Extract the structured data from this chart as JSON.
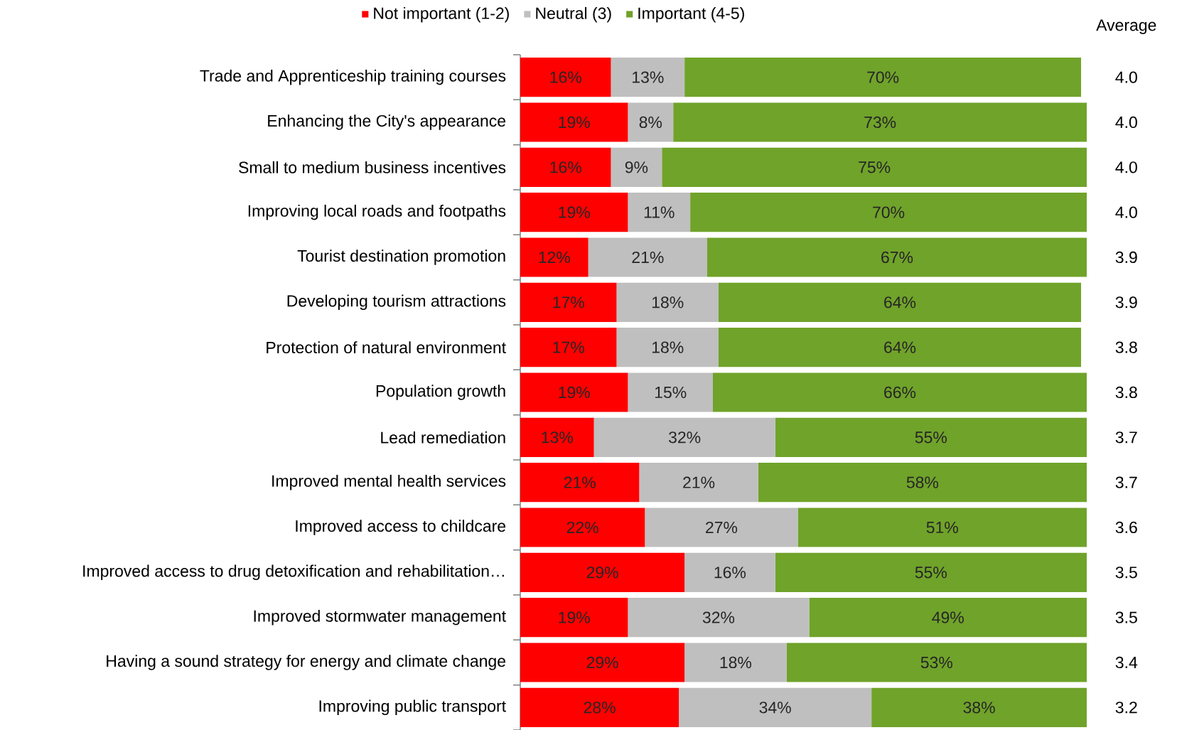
{
  "chart_data": {
    "type": "bar",
    "orientation": "horizontal",
    "stacked": true,
    "legend": "top",
    "categories": [
      "Trade and Apprenticeship training courses",
      "Enhancing the City's appearance",
      "Small to medium business incentives",
      "Improving local roads and footpaths",
      "Tourist destination promotion",
      "Developing tourism attractions",
      "Protection of natural environment",
      "Population growth",
      "Lead remediation",
      "Improved mental health services",
      "Improved access to childcare",
      "Improved access to drug detoxification and rehabilitation…",
      "Improved stormwater management",
      "Having a sound strategy for energy and climate change",
      "Improving public transport"
    ],
    "series": [
      {
        "name": "Not important (1-2)",
        "color": "#ff0000",
        "values": [
          16,
          19,
          16,
          19,
          12,
          17,
          17,
          19,
          13,
          21,
          22,
          29,
          19,
          29,
          28
        ],
        "value_labels": [
          "16%",
          "19%",
          "16%",
          "19%",
          "12%",
          "17%",
          "17%",
          "19%",
          "13%",
          "21%",
          "22%",
          "29%",
          "19%",
          "29%",
          "28%"
        ]
      },
      {
        "name": "Neutral (3)",
        "color": "#bfbfbf",
        "values": [
          13,
          8,
          9,
          11,
          21,
          18,
          18,
          15,
          32,
          21,
          27,
          16,
          32,
          18,
          34
        ],
        "value_labels": [
          "13%",
          "8%",
          "9%",
          "11%",
          "21%",
          "18%",
          "18%",
          "15%",
          "32%",
          "21%",
          "27%",
          "16%",
          "32%",
          "18%",
          "34%"
        ]
      },
      {
        "name": "Important (4-5)",
        "color": "#70a32a",
        "values": [
          70,
          73,
          75,
          70,
          67,
          64,
          64,
          66,
          55,
          58,
          51,
          55,
          49,
          53,
          38
        ],
        "value_labels": [
          "70%",
          "73%",
          "75%",
          "70%",
          "67%",
          "64%",
          "64%",
          "66%",
          "55%",
          "58%",
          "51%",
          "55%",
          "49%",
          "53%",
          "38%"
        ]
      }
    ],
    "annotations": [
      "Average",
      "4.0",
      "4.0",
      "4.0",
      "4.0",
      "3.9",
      "3.9",
      "3.8",
      "3.8",
      "3.7",
      "3.7",
      "3.6",
      "3.5",
      "3.5",
      "3.4",
      "3.2"
    ]
  }
}
